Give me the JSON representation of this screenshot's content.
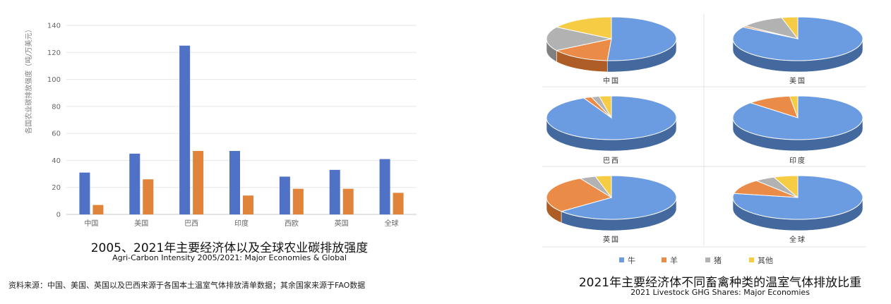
{
  "colors": {
    "series2005": "#4f71c6",
    "series2021": "#e0843b",
    "cattle": "#6b9be0",
    "sheep": "#ea8b48",
    "pig": "#b2b2b2",
    "other": "#f6cc44"
  },
  "bar_chart": {
    "title": "2005、2021年主要经济体以及全球农业碳排放强度",
    "subtitle": "Agri-Carbon Intensity 2005/2021: Major Economies & Global",
    "source": "资料来源：中国、美国、英国以及巴西来源于各国本土温室气体排放清单数据；其余国家来源于FAO数据"
  },
  "pie_chart": {
    "title": "2021年主要经济体不同畜禽种类的温室气体排放比重",
    "subtitle": "2021 Livestock GHG Shares: Major Economies"
  },
  "chart_data": [
    {
      "type": "bar",
      "title": "2005、2021年主要经济体以及全球农业碳排放强度",
      "subtitle": "Agri-Carbon Intensity 2005/2021: Major Economies & Global",
      "ylabel": "各国农业碳排放强度（吨/万美元）",
      "xlabel": "",
      "categories": [
        "中国",
        "美国",
        "巴西",
        "印度",
        "西欧",
        "英国",
        "全球"
      ],
      "series": [
        {
          "values": [
            31,
            45,
            125,
            47,
            28,
            33,
            41
          ]
        },
        {
          "values": [
            7,
            26,
            47,
            14,
            19,
            19,
            16
          ]
        }
      ],
      "ylim": [
        0,
        140
      ],
      "yticks": [
        0,
        20,
        40,
        60,
        80,
        100,
        120,
        140
      ],
      "grid": true
    },
    {
      "type": "pie",
      "title": "2021年主要经济体不同畜禽种类的温室气体排放比重",
      "subtitle": "2021 Livestock GHG Shares: Major Economies",
      "legend": [
        "牛",
        "羊",
        "猪",
        "其他"
      ],
      "legend_position": "bottom",
      "pies": [
        {
          "label": "中国",
          "values": [
            51,
            15,
            18,
            16
          ]
        },
        {
          "label": "美国",
          "values": [
            84,
            1,
            11,
            4
          ]
        },
        {
          "label": "巴西",
          "values": [
            93,
            2,
            2,
            3
          ]
        },
        {
          "label": "印度",
          "values": [
            87,
            11,
            0,
            2
          ]
        },
        {
          "label": "英国",
          "values": [
            64,
            28,
            4,
            4
          ]
        },
        {
          "label": "全球",
          "values": [
            78,
            11,
            5,
            6
          ]
        }
      ]
    }
  ]
}
